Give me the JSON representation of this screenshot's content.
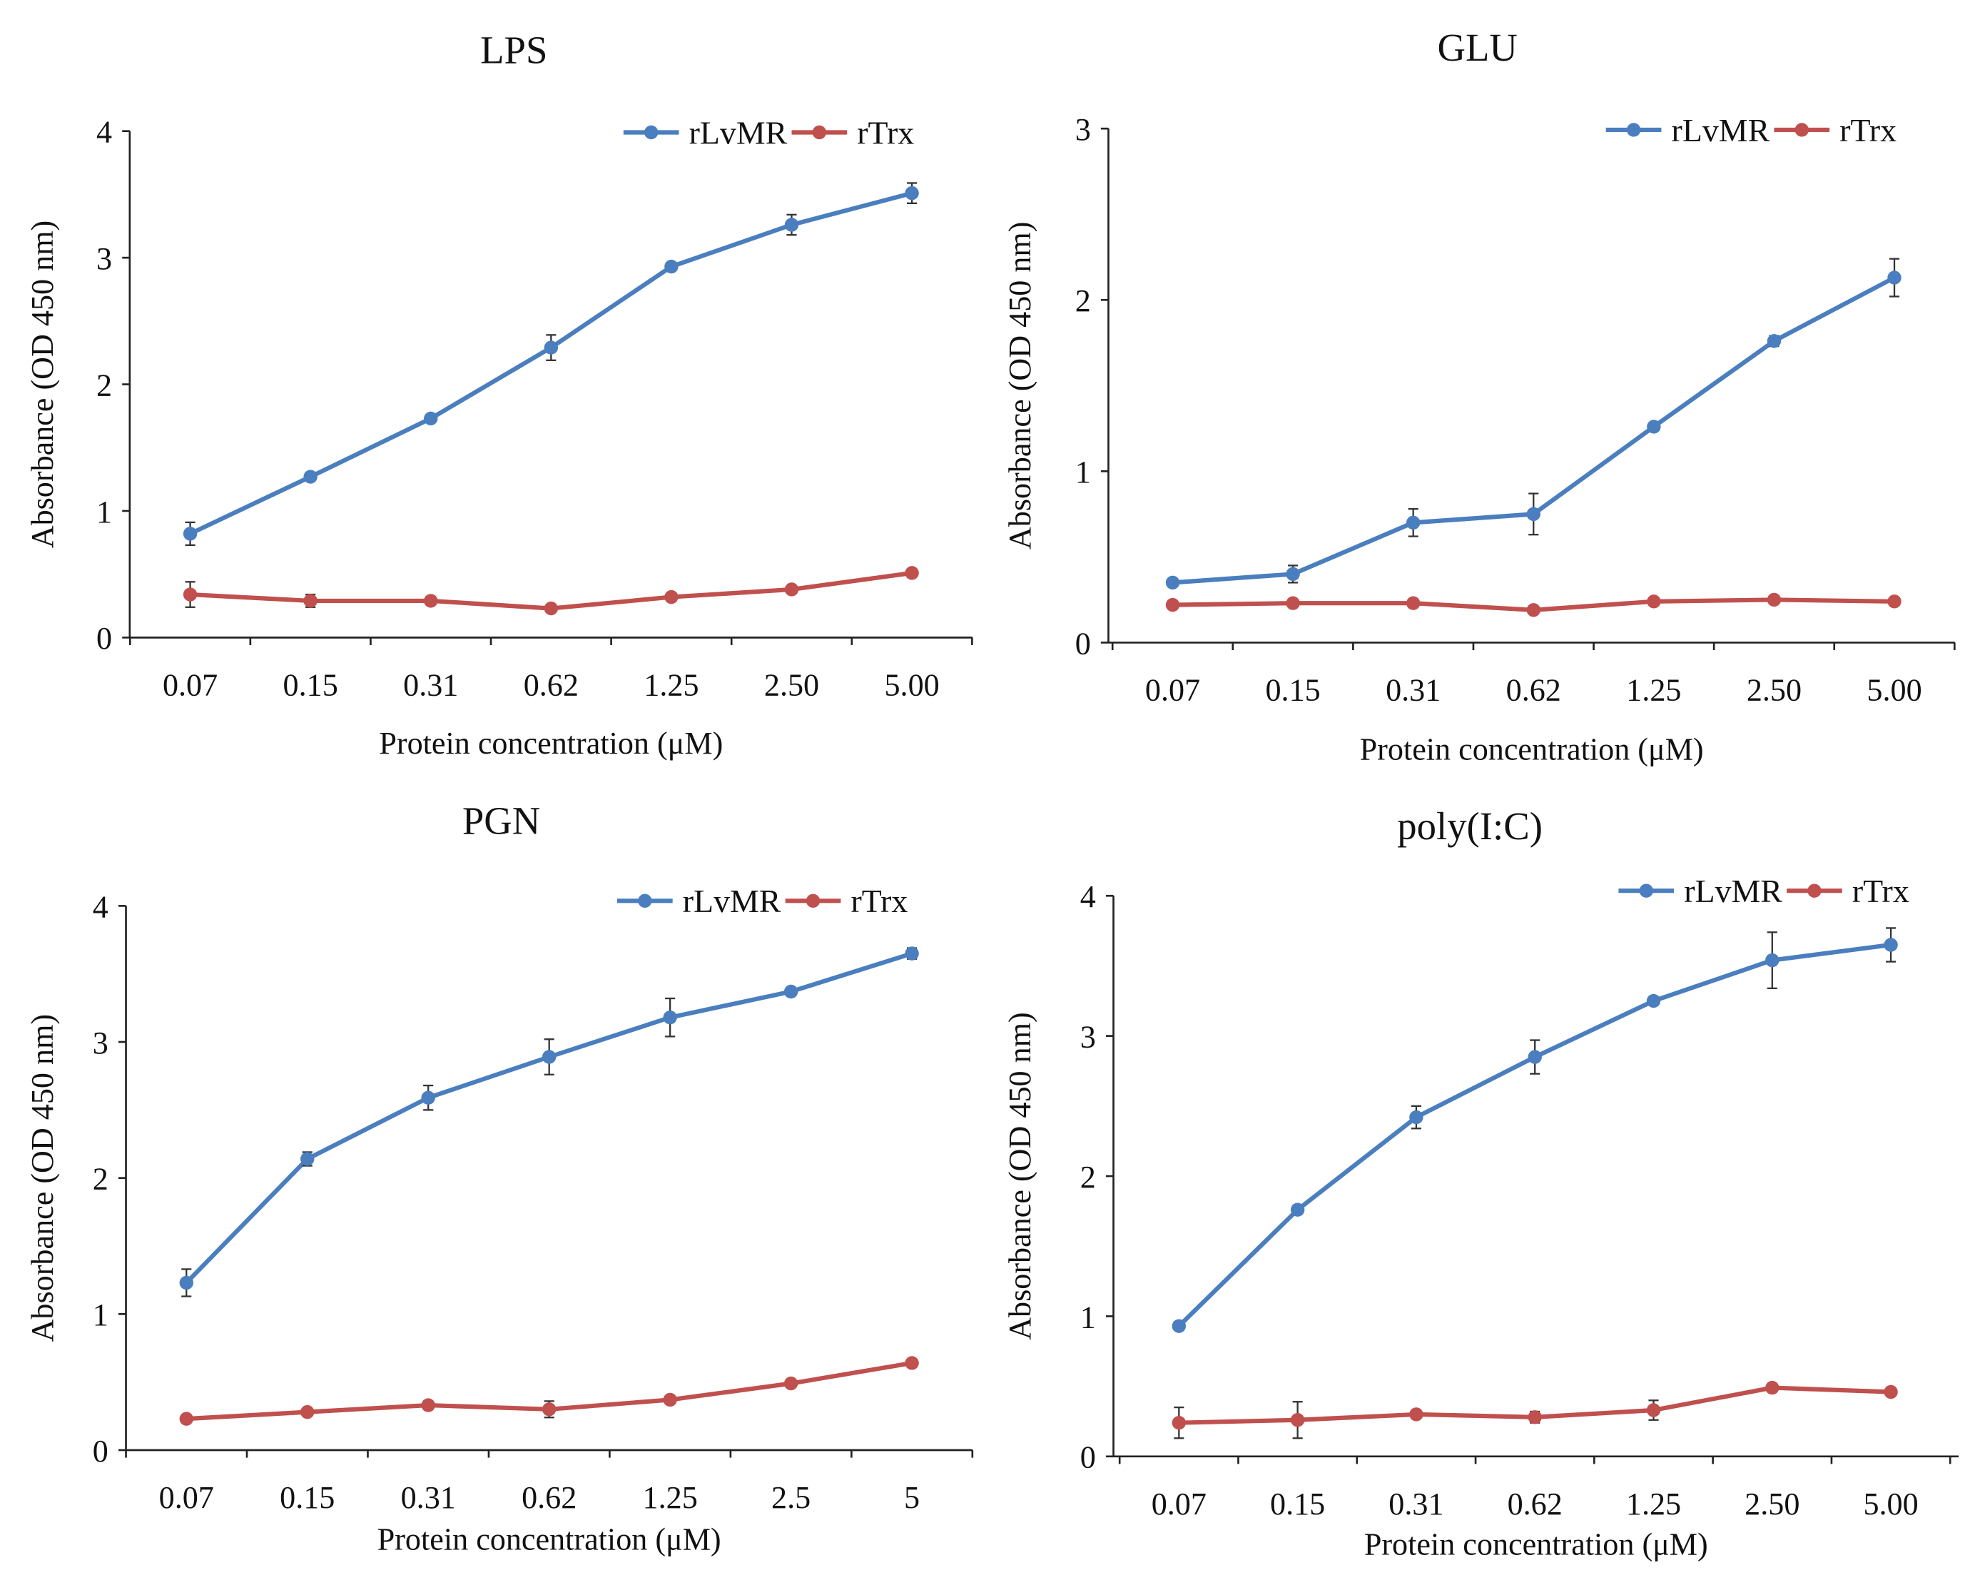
{
  "chart_data": [
    {
      "type": "line",
      "title": "LPS",
      "xlabel": "Protein concentration (μM)",
      "ylabel": "Absorbance (OD 450 nm)",
      "categories": [
        "0.07",
        "0.15",
        "0.31",
        "0.62",
        "1.25",
        "2.50",
        "5.00"
      ],
      "ylim": [
        0,
        4
      ],
      "yticks": [
        "0",
        "1",
        "2",
        "3",
        "4"
      ],
      "legend": "top-right",
      "grid": false,
      "series": [
        {
          "name": "rLvMR",
          "color": "#4a7ebf",
          "values": [
            0.82,
            1.27,
            1.73,
            2.29,
            2.93,
            3.26,
            3.51
          ],
          "errors": [
            0.09,
            0.03,
            0.03,
            0.1,
            0.03,
            0.08,
            0.08
          ]
        },
        {
          "name": "rTrx",
          "color": "#c0504d",
          "values": [
            0.34,
            0.29,
            0.29,
            0.23,
            0.32,
            0.38,
            0.51
          ],
          "errors": [
            0.1,
            0.05,
            0.02,
            0.02,
            0.02,
            0.02,
            0.03
          ]
        }
      ]
    },
    {
      "type": "line",
      "title": "GLU",
      "xlabel": "Protein concentration (μM)",
      "ylabel": "Absorbance (OD 450 nm)",
      "categories": [
        "0.07",
        "0.15",
        "0.31",
        "0.62",
        "1.25",
        "2.50",
        "5.00"
      ],
      "ylim": [
        0,
        3
      ],
      "yticks": [
        "0",
        "1",
        "2",
        "3"
      ],
      "legend": "top-right",
      "grid": false,
      "series": [
        {
          "name": "rLvMR",
          "color": "#4a7ebf",
          "values": [
            0.35,
            0.4,
            0.7,
            0.75,
            1.26,
            1.76,
            2.13
          ],
          "errors": [
            0.02,
            0.05,
            0.08,
            0.12,
            0.02,
            0.03,
            0.11
          ]
        },
        {
          "name": "rTrx",
          "color": "#c0504d",
          "values": [
            0.22,
            0.23,
            0.23,
            0.19,
            0.24,
            0.25,
            0.24
          ],
          "errors": [
            0.02,
            0.02,
            0.02,
            0.02,
            0.02,
            0.02,
            0.02
          ]
        }
      ]
    },
    {
      "type": "line",
      "title": "PGN",
      "xlabel": "Protein concentration (μM)",
      "ylabel": "Absorbance (OD 450 nm)",
      "categories": [
        "0.07",
        "0.15",
        "0.31",
        "0.62",
        "1.25",
        "2.5",
        "5"
      ],
      "ylim": [
        0,
        4
      ],
      "yticks": [
        "0",
        "1",
        "2",
        "3",
        "4"
      ],
      "legend": "top-right",
      "grid": false,
      "series": [
        {
          "name": "rLvMR",
          "color": "#4a7ebf",
          "values": [
            1.23,
            2.14,
            2.59,
            2.89,
            3.18,
            3.37,
            3.65
          ],
          "errors": [
            0.1,
            0.05,
            0.09,
            0.13,
            0.14,
            0.03,
            0.04
          ]
        },
        {
          "name": "rTrx",
          "color": "#c0504d",
          "values": [
            0.23,
            0.28,
            0.33,
            0.3,
            0.37,
            0.49,
            0.64
          ],
          "errors": [
            0.02,
            0.02,
            0.03,
            0.06,
            0.02,
            0.02,
            0.02
          ]
        }
      ]
    },
    {
      "type": "line",
      "title": "poly(I:C)",
      "xlabel": "Protein concentration (μM)",
      "ylabel": "Absorbance (OD 450 nm)",
      "categories": [
        "0.07",
        "0.15",
        "0.31",
        "0.62",
        "1.25",
        "2.50",
        "5.00"
      ],
      "ylim": [
        0,
        4
      ],
      "yticks": [
        "0",
        "1",
        "2",
        "3",
        "4"
      ],
      "legend": "top-right",
      "grid": false,
      "series": [
        {
          "name": "rLvMR",
          "color": "#4a7ebf",
          "values": [
            0.93,
            1.76,
            2.42,
            2.85,
            3.25,
            3.54,
            3.65
          ],
          "errors": [
            0.03,
            0.03,
            0.08,
            0.12,
            0.03,
            0.2,
            0.12
          ]
        },
        {
          "name": "rTrx",
          "color": "#c0504d",
          "values": [
            0.24,
            0.26,
            0.3,
            0.28,
            0.33,
            0.49,
            0.46
          ],
          "errors": [
            0.11,
            0.13,
            0.03,
            0.04,
            0.07,
            0.03,
            0.03
          ]
        }
      ]
    }
  ]
}
